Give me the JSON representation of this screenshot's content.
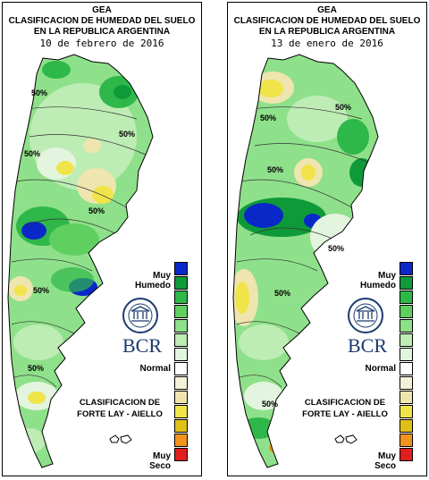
{
  "panels": [
    {
      "org": "GEA",
      "title_line1": "CLASIFICACION DE HUMEDAD DEL SUELO",
      "title_line2": "EN LA REPUBLICA ARGENTINA",
      "date": "10 de febrero de 2016",
      "contour_labels": [
        "50%",
        "50%",
        "50%",
        "50%",
        "50%",
        "50%"
      ]
    },
    {
      "org": "GEA",
      "title_line1": "CLASIFICACION DE HUMEDAD DEL SUELO",
      "title_line2": "EN LA REPUBLICA ARGENTINA",
      "date": "13 de enero de 2016",
      "contour_labels": [
        "50%",
        "50%",
        "50%",
        "50%",
        "50%",
        "50%"
      ]
    }
  ],
  "legend": {
    "top_label": "Muy\nHumedo",
    "mid_label": "Normal",
    "bottom_label": "Muy\nSeco",
    "colors": [
      "#0a28c8",
      "#0f9a3a",
      "#2fb84a",
      "#5fd060",
      "#8fe08a",
      "#bdecb5",
      "#e4f5df",
      "#ffffff",
      "#f5f0d8",
      "#efe5ae",
      "#f0e44a",
      "#e0c016",
      "#f0941e",
      "#e01e1e"
    ]
  },
  "classification": {
    "line1": "CLASIFICACION DE",
    "line2": "FORTE LAY - AIELLO"
  },
  "logo": {
    "text": "BCR",
    "seal_text": "BOLSA DE COMERCIO DE ROSARIO",
    "color": "#1c3b6e"
  }
}
